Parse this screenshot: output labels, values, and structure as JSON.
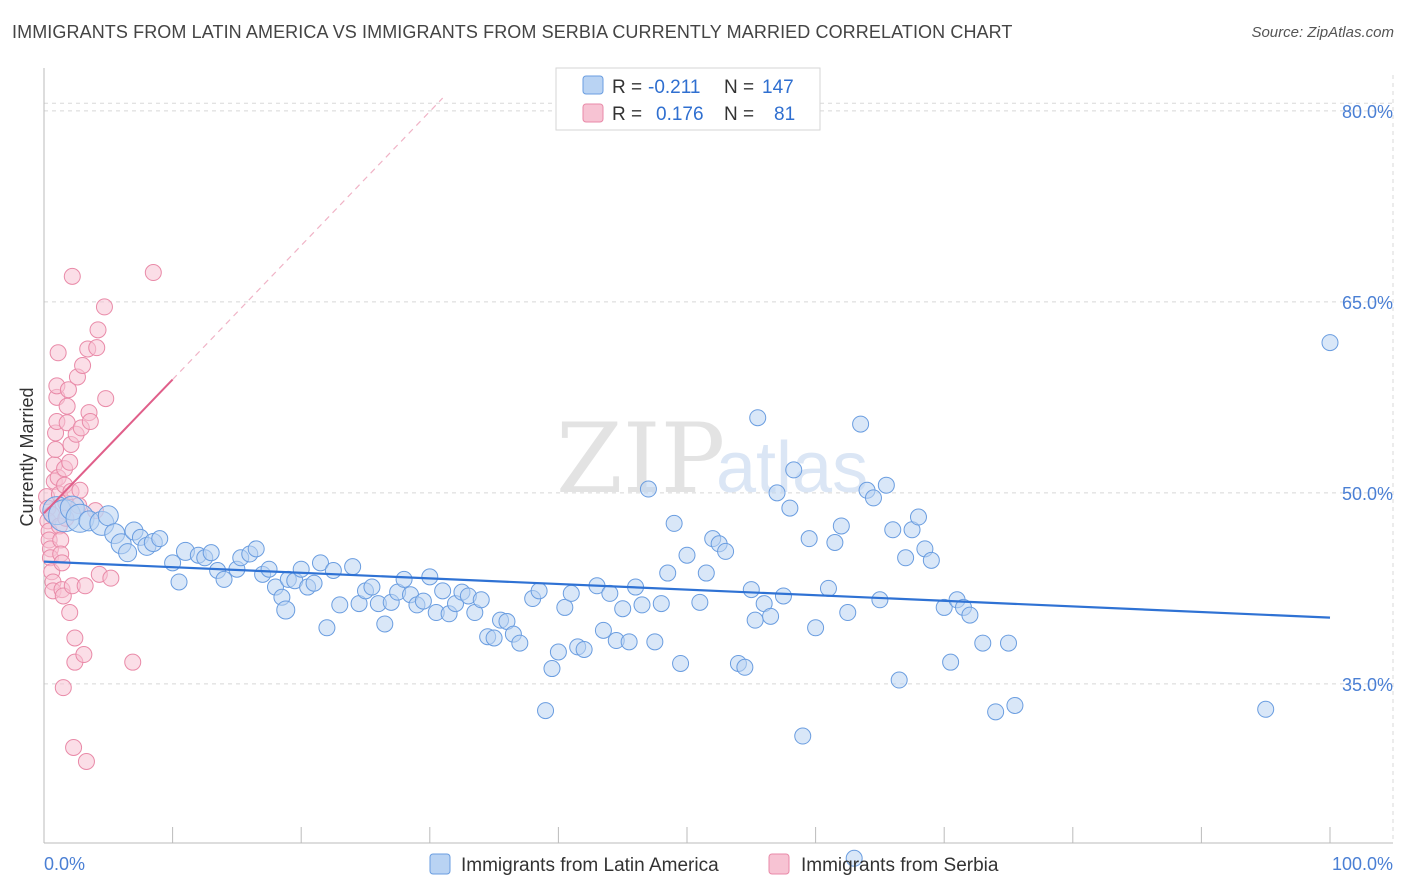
{
  "title": "IMMIGRANTS FROM LATIN AMERICA VS IMMIGRANTS FROM SERBIA CURRENTLY MARRIED CORRELATION CHART",
  "source": "Source: ZipAtlas.com",
  "watermark": {
    "zip": "ZIP",
    "atlas": "atlas"
  },
  "colors": {
    "blue_fill": "#b9d3f3",
    "blue_stroke": "#6a9de0",
    "blue_line": "#2f72d4",
    "pink_fill": "#f7c3d3",
    "pink_stroke": "#e98aa8",
    "pink_line": "#e05f8a",
    "grid": "#d8d8d8",
    "tick_text": "#4a7fd4"
  },
  "legend": {
    "rows": [
      {
        "r_label": "R =",
        "r_value": "-0.211",
        "n_label": "N =",
        "n_value": "147",
        "color": "blue"
      },
      {
        "r_label": "R =",
        "r_value": "0.176",
        "n_label": "N =",
        "n_value": "81",
        "color": "pink"
      }
    ]
  },
  "bottom_legend": [
    {
      "label": "Immigrants from Latin America",
      "color": "blue"
    },
    {
      "label": "Immigrants from Serbia",
      "color": "pink"
    }
  ],
  "chart_data": {
    "type": "scatter",
    "title": "IMMIGRANTS FROM LATIN AMERICA VS IMMIGRANTS FROM SERBIA CURRENTLY MARRIED CORRELATION CHART",
    "xlabel": "",
    "ylabel": "Currently Married",
    "xlim": [
      0,
      100
    ],
    "ylim": [
      22.5,
      82.5
    ],
    "x_tick_labels": [
      {
        "value": 0,
        "label": "0.0%"
      },
      {
        "value": 100,
        "label": "100.0%"
      }
    ],
    "y_tick_labels": [
      {
        "value": 35,
        "label": "35.0%"
      },
      {
        "value": 50,
        "label": "50.0%"
      },
      {
        "value": 65,
        "label": "65.0%"
      },
      {
        "value": 80,
        "label": "80.0%"
      }
    ],
    "grid": true,
    "legend_position": "top-center",
    "series": [
      {
        "name": "Immigrants from Latin America",
        "color": "blue",
        "trend": {
          "x": [
            0,
            100
          ],
          "y": [
            44.6,
            40.2
          ],
          "style": "solid"
        },
        "points": [
          [
            1.0,
            48.6,
            14
          ],
          [
            1.6,
            48.2,
            16
          ],
          [
            2.2,
            48.8,
            12
          ],
          [
            2.8,
            48.0,
            14
          ],
          [
            3.5,
            47.8,
            10
          ],
          [
            4.5,
            47.6,
            12
          ],
          [
            5.0,
            48.2,
            10
          ],
          [
            5.5,
            46.8,
            10
          ],
          [
            6.0,
            46.0,
            10
          ],
          [
            6.5,
            45.3,
            9
          ],
          [
            7.0,
            47.0,
            9
          ],
          [
            7.5,
            46.5,
            8
          ],
          [
            8.0,
            45.8,
            9
          ],
          [
            8.5,
            46.1,
            9
          ],
          [
            9.0,
            46.4,
            8
          ],
          [
            10.0,
            44.5,
            8
          ],
          [
            10.5,
            43.0,
            8
          ],
          [
            11.0,
            45.4,
            9
          ],
          [
            12.0,
            45.1,
            8
          ],
          [
            12.5,
            44.9,
            8
          ],
          [
            13.0,
            45.3,
            8
          ],
          [
            13.5,
            43.9,
            8
          ],
          [
            14.0,
            43.2,
            8
          ],
          [
            15.0,
            44.0,
            8
          ],
          [
            15.3,
            44.9,
            8
          ],
          [
            16.0,
            45.2,
            8
          ],
          [
            16.5,
            45.6,
            8
          ],
          [
            17.0,
            43.6,
            8
          ],
          [
            17.5,
            44.0,
            8
          ],
          [
            18.0,
            42.6,
            8
          ],
          [
            18.5,
            41.8,
            8
          ],
          [
            18.8,
            40.8,
            9
          ],
          [
            19.0,
            43.2,
            8
          ],
          [
            19.5,
            43.1,
            8
          ],
          [
            20.0,
            44.0,
            8
          ],
          [
            20.5,
            42.6,
            8
          ],
          [
            21.0,
            42.9,
            8
          ],
          [
            21.5,
            44.5,
            8
          ],
          [
            22.0,
            39.4,
            8
          ],
          [
            22.5,
            43.9,
            8
          ],
          [
            23.0,
            41.2,
            8
          ],
          [
            24.0,
            44.2,
            8
          ],
          [
            24.5,
            41.3,
            8
          ],
          [
            25.0,
            42.3,
            8
          ],
          [
            25.5,
            42.6,
            8
          ],
          [
            26.0,
            41.3,
            8
          ],
          [
            26.5,
            39.7,
            8
          ],
          [
            27.0,
            41.4,
            8
          ],
          [
            27.5,
            42.2,
            8
          ],
          [
            28.0,
            43.2,
            8
          ],
          [
            28.5,
            42.0,
            8
          ],
          [
            29.0,
            41.2,
            8
          ],
          [
            29.5,
            41.5,
            8
          ],
          [
            30.0,
            43.4,
            8
          ],
          [
            30.5,
            40.6,
            8
          ],
          [
            31.0,
            42.3,
            8
          ],
          [
            31.5,
            40.5,
            8
          ],
          [
            32.0,
            41.3,
            8
          ],
          [
            32.5,
            42.2,
            8
          ],
          [
            33.0,
            41.9,
            8
          ],
          [
            33.5,
            40.6,
            8
          ],
          [
            34.0,
            41.6,
            8
          ],
          [
            34.5,
            38.7,
            8
          ],
          [
            35.0,
            38.6,
            8
          ],
          [
            35.5,
            40.0,
            8
          ],
          [
            36.0,
            39.9,
            8
          ],
          [
            36.5,
            38.9,
            8
          ],
          [
            37.0,
            38.2,
            8
          ],
          [
            38.0,
            41.7,
            8
          ],
          [
            38.5,
            42.3,
            8
          ],
          [
            39.0,
            32.9,
            8
          ],
          [
            39.5,
            36.2,
            8
          ],
          [
            40.0,
            37.5,
            8
          ],
          [
            40.5,
            41.0,
            8
          ],
          [
            41.0,
            42.1,
            8
          ],
          [
            41.5,
            37.9,
            8
          ],
          [
            42.0,
            37.7,
            8
          ],
          [
            43.0,
            42.7,
            8
          ],
          [
            43.5,
            39.2,
            8
          ],
          [
            44.0,
            42.1,
            8
          ],
          [
            44.5,
            38.4,
            8
          ],
          [
            45.0,
            40.9,
            8
          ],
          [
            45.5,
            38.3,
            8
          ],
          [
            46.0,
            42.6,
            8
          ],
          [
            46.5,
            41.2,
            8
          ],
          [
            47.0,
            50.3,
            8
          ],
          [
            47.5,
            38.3,
            8
          ],
          [
            48.0,
            41.3,
            8
          ],
          [
            48.5,
            43.7,
            8
          ],
          [
            49.0,
            47.6,
            8
          ],
          [
            49.5,
            36.6,
            8
          ],
          [
            50.0,
            45.1,
            8
          ],
          [
            51.0,
            41.4,
            8
          ],
          [
            51.5,
            43.7,
            8
          ],
          [
            52.0,
            46.4,
            8
          ],
          [
            52.5,
            46.0,
            8
          ],
          [
            53.0,
            45.4,
            8
          ],
          [
            54.0,
            36.6,
            8
          ],
          [
            54.5,
            36.3,
            8
          ],
          [
            55.0,
            42.4,
            8
          ],
          [
            55.3,
            40.0,
            8
          ],
          [
            55.5,
            55.9,
            8
          ],
          [
            56.0,
            41.3,
            8
          ],
          [
            56.5,
            40.3,
            8
          ],
          [
            57.0,
            50.0,
            8
          ],
          [
            57.5,
            41.9,
            8
          ],
          [
            58.0,
            48.8,
            8
          ],
          [
            58.3,
            51.8,
            8
          ],
          [
            59.0,
            30.9,
            8
          ],
          [
            59.5,
            46.4,
            8
          ],
          [
            60.0,
            39.4,
            8
          ],
          [
            61.0,
            42.5,
            8
          ],
          [
            61.5,
            46.1,
            8
          ],
          [
            62.0,
            47.4,
            8
          ],
          [
            62.5,
            40.6,
            8
          ],
          [
            63.0,
            21.3,
            8
          ],
          [
            63.5,
            55.4,
            8
          ],
          [
            64.0,
            50.2,
            8
          ],
          [
            64.5,
            49.6,
            8
          ],
          [
            65.0,
            41.6,
            8
          ],
          [
            65.5,
            50.6,
            8
          ],
          [
            66.0,
            47.1,
            8
          ],
          [
            66.5,
            35.3,
            8
          ],
          [
            67.0,
            44.9,
            8
          ],
          [
            67.5,
            47.1,
            8
          ],
          [
            68.0,
            48.1,
            8
          ],
          [
            68.5,
            45.6,
            8
          ],
          [
            69.0,
            44.7,
            8
          ],
          [
            70.0,
            41.0,
            8
          ],
          [
            70.5,
            36.7,
            8
          ],
          [
            71.0,
            41.6,
            8
          ],
          [
            71.5,
            41.0,
            8
          ],
          [
            72.0,
            40.4,
            8
          ],
          [
            73.0,
            38.2,
            8
          ],
          [
            74.0,
            32.8,
            8
          ],
          [
            75.0,
            38.2,
            8
          ],
          [
            75.5,
            33.3,
            8
          ],
          [
            95.0,
            33.0,
            8
          ],
          [
            100.0,
            61.8,
            8
          ]
        ]
      },
      {
        "name": "Immigrants from Serbia",
        "color": "pink",
        "trend": {
          "x": [
            0,
            10
          ],
          "y": [
            48.4,
            58.9
          ],
          "style": "solid",
          "extended_x": [
            10,
            31
          ],
          "extended_y": [
            58.9,
            81.0
          ],
          "extended_style": "dashed"
        },
        "points": [
          [
            0.2,
            49.7,
            8
          ],
          [
            0.3,
            48.8,
            8
          ],
          [
            0.3,
            47.8,
            8
          ],
          [
            0.4,
            47.0,
            8
          ],
          [
            0.4,
            46.3,
            8
          ],
          [
            0.5,
            45.6,
            8
          ],
          [
            0.5,
            44.9,
            8
          ],
          [
            0.6,
            48.3,
            8
          ],
          [
            0.6,
            43.8,
            8
          ],
          [
            0.7,
            43.0,
            8
          ],
          [
            0.7,
            42.3,
            8
          ],
          [
            0.8,
            50.9,
            8
          ],
          [
            0.8,
            52.2,
            8
          ],
          [
            0.9,
            53.4,
            8
          ],
          [
            0.9,
            54.7,
            8
          ],
          [
            1.0,
            55.6,
            8
          ],
          [
            1.0,
            57.5,
            8
          ],
          [
            1.0,
            58.4,
            8
          ],
          [
            1.1,
            61.0,
            8
          ],
          [
            1.1,
            51.2,
            8
          ],
          [
            1.2,
            49.9,
            8
          ],
          [
            1.2,
            47.4,
            8
          ],
          [
            1.3,
            46.3,
            8
          ],
          [
            1.3,
            45.2,
            8
          ],
          [
            1.4,
            44.5,
            8
          ],
          [
            1.4,
            42.4,
            8
          ],
          [
            1.5,
            41.9,
            8
          ],
          [
            1.5,
            34.7,
            8
          ],
          [
            1.6,
            51.9,
            8
          ],
          [
            1.6,
            50.6,
            8
          ],
          [
            1.7,
            49.2,
            8
          ],
          [
            1.7,
            48.0,
            8
          ],
          [
            1.8,
            55.5,
            8
          ],
          [
            1.8,
            56.8,
            8
          ],
          [
            1.9,
            58.1,
            8
          ],
          [
            2.0,
            40.6,
            8
          ],
          [
            2.0,
            52.4,
            8
          ],
          [
            2.1,
            53.8,
            8
          ],
          [
            2.1,
            50.1,
            8
          ],
          [
            2.2,
            42.7,
            8
          ],
          [
            2.2,
            67.0,
            8
          ],
          [
            2.3,
            30.0,
            8
          ],
          [
            2.4,
            38.6,
            8
          ],
          [
            2.4,
            36.7,
            8
          ],
          [
            2.5,
            54.6,
            8
          ],
          [
            2.6,
            59.1,
            8
          ],
          [
            2.7,
            49.0,
            8
          ],
          [
            2.8,
            50.2,
            8
          ],
          [
            2.9,
            55.1,
            8
          ],
          [
            3.0,
            60.0,
            8
          ],
          [
            3.1,
            37.3,
            8
          ],
          [
            3.2,
            42.7,
            8
          ],
          [
            3.3,
            28.9,
            8
          ],
          [
            3.4,
            61.3,
            8
          ],
          [
            3.5,
            56.3,
            8
          ],
          [
            3.6,
            55.6,
            8
          ],
          [
            4.0,
            48.6,
            8
          ],
          [
            4.1,
            61.4,
            8
          ],
          [
            4.2,
            62.8,
            8
          ],
          [
            4.3,
            43.6,
            8
          ],
          [
            4.7,
            64.6,
            8
          ],
          [
            4.8,
            57.4,
            8
          ],
          [
            5.2,
            43.3,
            8
          ],
          [
            6.9,
            36.7,
            8
          ],
          [
            8.5,
            67.3,
            8
          ]
        ]
      }
    ]
  }
}
